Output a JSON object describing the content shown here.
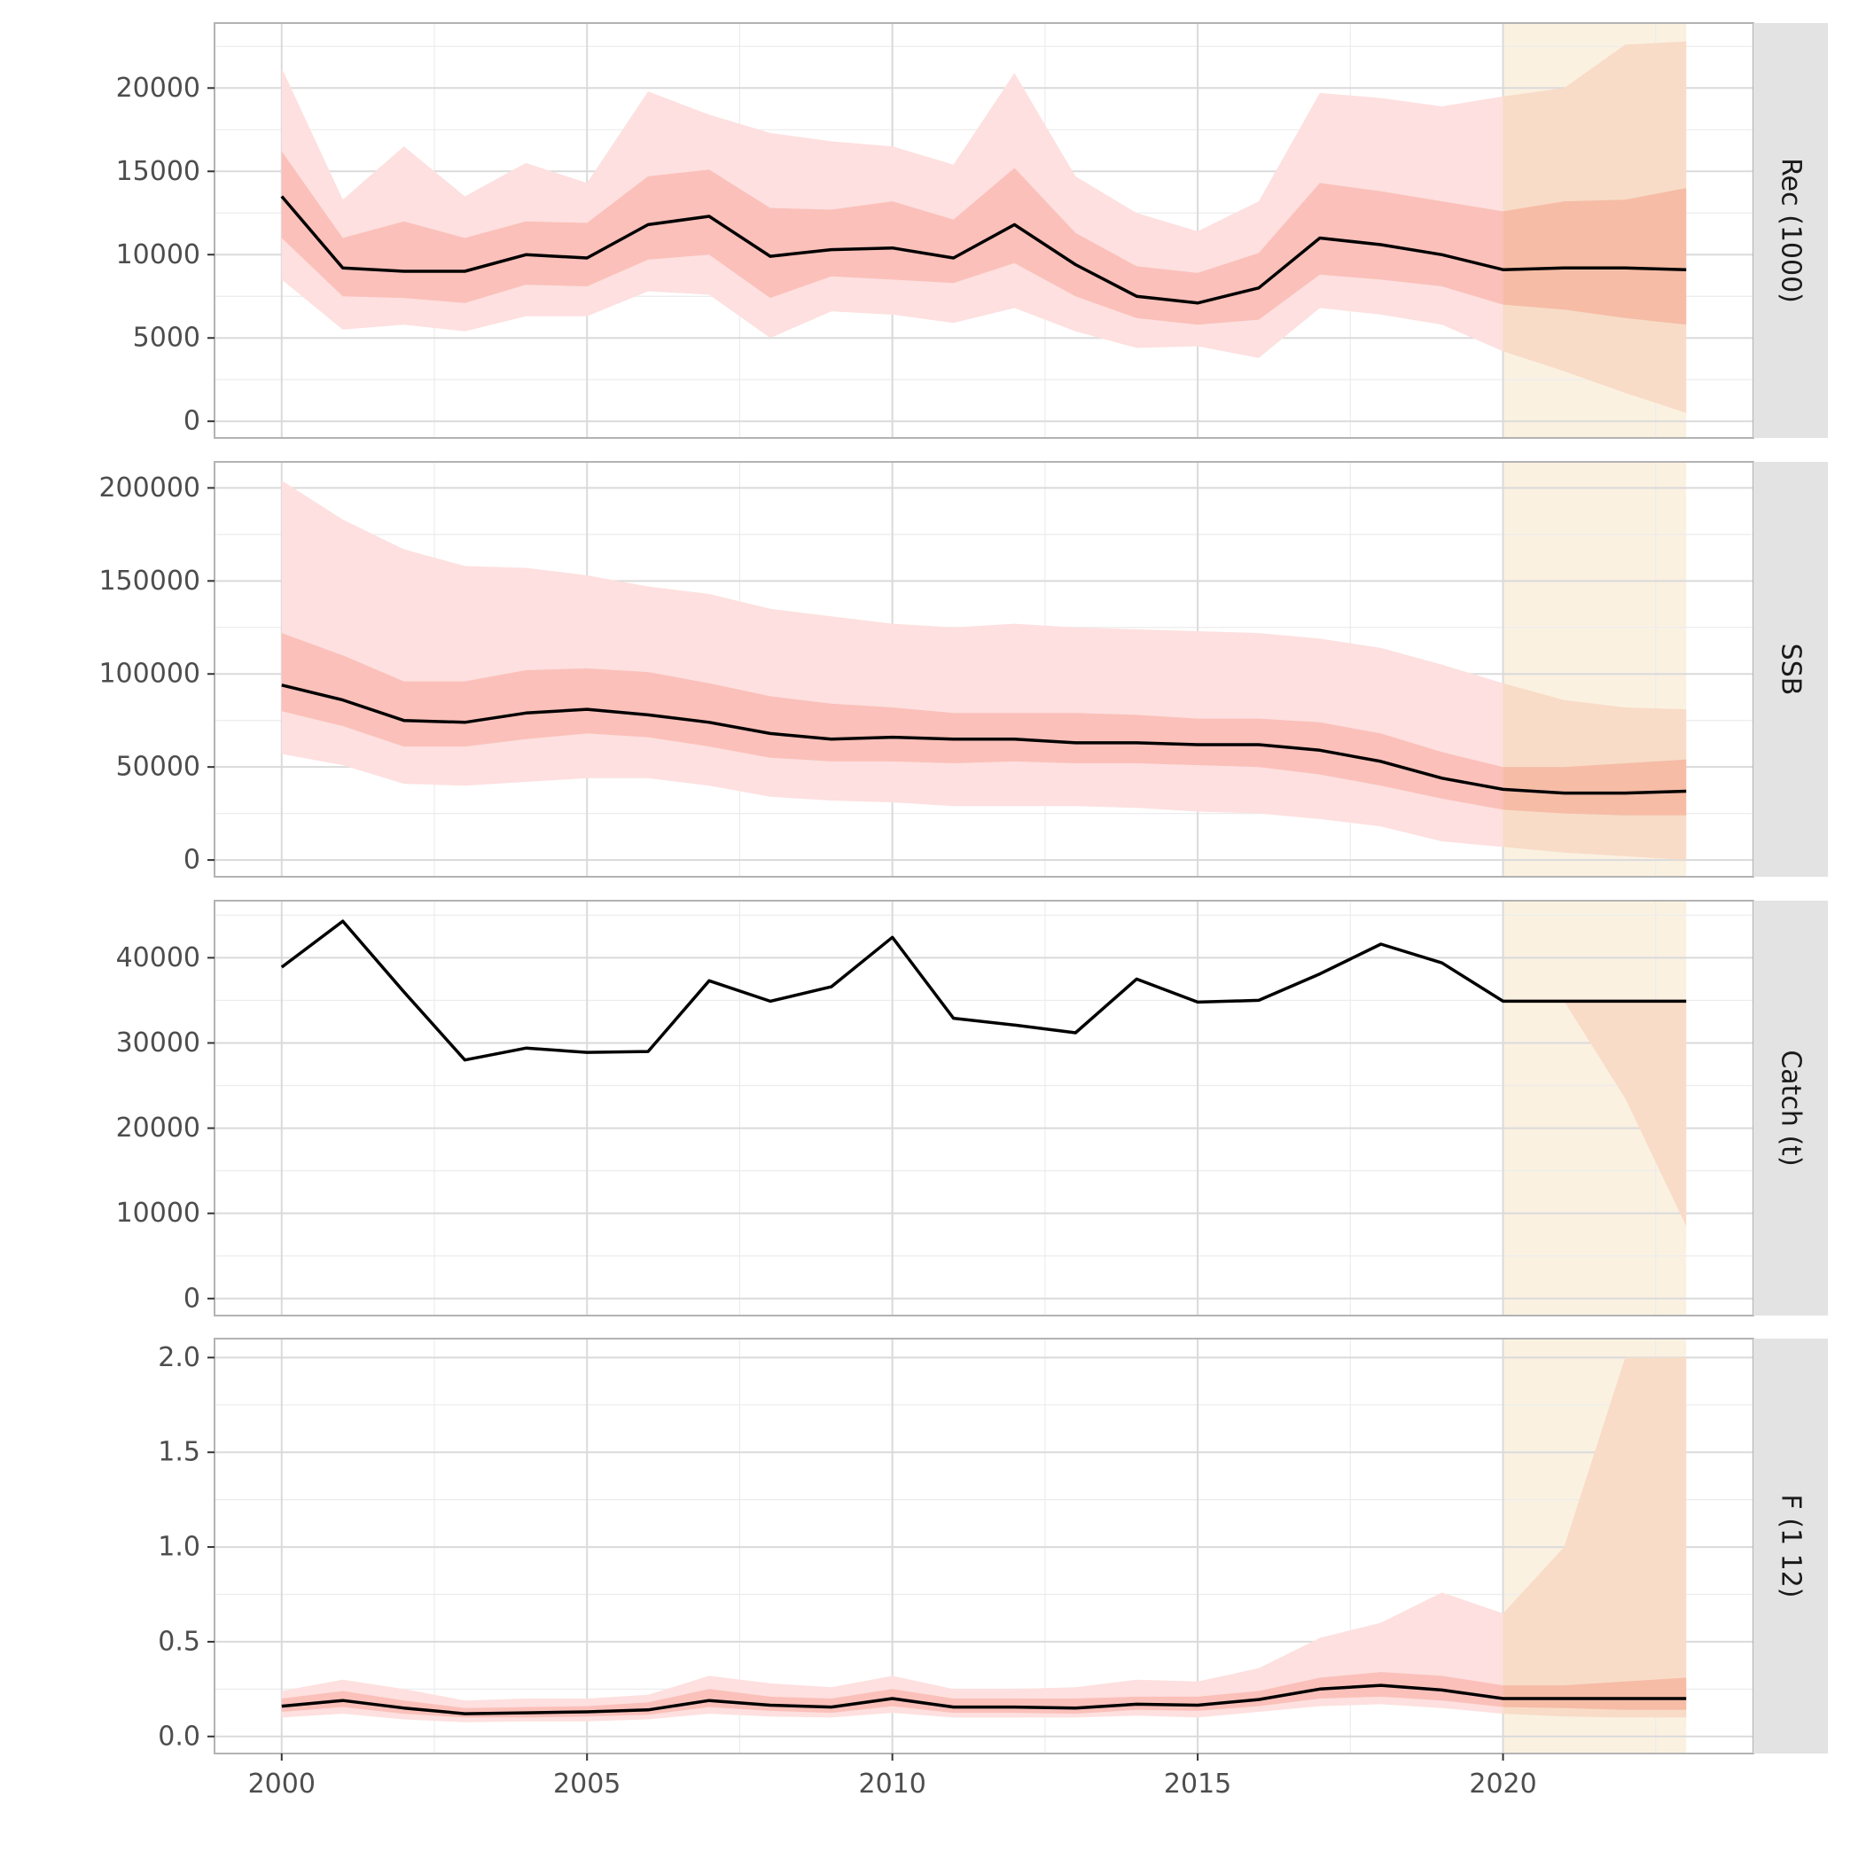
{
  "chart_data": {
    "type": "area",
    "x_label": "",
    "xlim": [
      1998.9,
      2024.1
    ],
    "x_ticks": [
      2000,
      2005,
      2010,
      2015,
      2020
    ],
    "x_minor_ticks": [
      2002.5,
      2007.5,
      2012.5,
      2017.5,
      2022.5
    ],
    "projection_period": [
      2020,
      2023
    ],
    "grid": true,
    "colors": {
      "outer_band": "#fde0df",
      "inner_band": "#fbc0ba",
      "projection_bg": "#fbf1e1",
      "projection_outer": "#f8dcc8",
      "projection_inner": "#f6bca6",
      "median_line": "#000000",
      "strip_bg": "#e3e3e3",
      "panel_border": "#b3b3b3",
      "major_grid": "#dadada",
      "minor_grid": "#ececec"
    },
    "years": [
      2000,
      2001,
      2002,
      2003,
      2004,
      2005,
      2006,
      2007,
      2008,
      2009,
      2010,
      2011,
      2012,
      2013,
      2014,
      2015,
      2016,
      2017,
      2018,
      2019,
      2020,
      2021,
      2022,
      2023
    ],
    "panels": [
      {
        "label": "Rec (1000)",
        "ylim": [
          -1000,
          23900
        ],
        "y_ticks": [
          0,
          5000,
          10000,
          15000,
          20000
        ],
        "y_tick_labels": [
          "0",
          "5000",
          "10000",
          "15000",
          "20000"
        ],
        "y_minor_ticks": [
          2500,
          7500,
          12500,
          17500,
          22500
        ],
        "median": [
          13500,
          9200,
          9000,
          9000,
          10000,
          9800,
          11800,
          12300,
          9900,
          10300,
          10400,
          9800,
          11800,
          9400,
          7500,
          7100,
          8000,
          11000,
          10600,
          10000,
          9100,
          9200,
          9200,
          9100
        ],
        "inner_low": [
          11000,
          7500,
          7400,
          7100,
          8200,
          8100,
          9700,
          10000,
          7400,
          8700,
          8500,
          8300,
          9500,
          7500,
          6200,
          5800,
          6100,
          8800,
          8500,
          8100,
          7000,
          6700,
          6200,
          5800
        ],
        "inner_high": [
          16200,
          11000,
          12000,
          11000,
          12000,
          11900,
          14700,
          15100,
          12800,
          12700,
          13200,
          12100,
          15200,
          11300,
          9300,
          8900,
          10100,
          14300,
          13800,
          13200,
          12600,
          13200,
          13300,
          14000
        ],
        "outer_low": [
          8500,
          5500,
          5800,
          5400,
          6300,
          6300,
          7800,
          7600,
          5000,
          6600,
          6400,
          5900,
          6800,
          5400,
          4400,
          4500,
          3800,
          6800,
          6400,
          5800,
          4200,
          3000,
          1700,
          500
        ],
        "outer_high": [
          21200,
          13300,
          16500,
          13500,
          15500,
          14300,
          19800,
          18400,
          17300,
          16800,
          16500,
          15400,
          20900,
          14700,
          12500,
          11400,
          13200,
          19700,
          19400,
          18900,
          19500,
          20000,
          22600,
          22800
        ]
      },
      {
        "label": "SSB",
        "ylim": [
          -9000,
          214000
        ],
        "y_ticks": [
          0,
          50000,
          100000,
          150000,
          200000
        ],
        "y_tick_labels": [
          "0",
          "50000",
          "100000",
          "150000",
          "200000"
        ],
        "y_minor_ticks": [
          25000,
          75000,
          125000,
          175000
        ],
        "median": [
          94000,
          86000,
          75000,
          74000,
          79000,
          81000,
          78000,
          74000,
          68000,
          65000,
          66000,
          65000,
          65000,
          63000,
          63000,
          62000,
          62000,
          59000,
          53000,
          44000,
          38000,
          36000,
          36000,
          37000
        ],
        "inner_low": [
          80000,
          72000,
          61000,
          61000,
          65000,
          68000,
          66000,
          61000,
          55000,
          53000,
          53000,
          52000,
          53000,
          52000,
          52000,
          51000,
          50000,
          46000,
          40000,
          33000,
          27000,
          25000,
          24000,
          24000
        ],
        "inner_high": [
          122000,
          110000,
          96000,
          96000,
          102000,
          103000,
          101000,
          95000,
          88000,
          84000,
          82000,
          79000,
          79000,
          79000,
          78000,
          76000,
          76000,
          74000,
          68000,
          58000,
          50000,
          50000,
          52000,
          54000
        ],
        "outer_low": [
          57000,
          51000,
          41000,
          40000,
          42000,
          44000,
          44000,
          40000,
          34000,
          32000,
          31000,
          29000,
          29000,
          29000,
          28000,
          26000,
          25000,
          22000,
          18000,
          10000,
          7000,
          4000,
          2000,
          0
        ],
        "outer_high": [
          204000,
          183000,
          167000,
          158000,
          157000,
          153000,
          147000,
          143000,
          135000,
          131000,
          127000,
          125000,
          127000,
          125000,
          124000,
          123000,
          122000,
          119000,
          114000,
          105000,
          95000,
          86000,
          82000,
          81000
        ]
      },
      {
        "label": "Catch (t)",
        "ylim": [
          -2000,
          46700
        ],
        "y_ticks": [
          0,
          10000,
          20000,
          30000,
          40000
        ],
        "y_tick_labels": [
          "0",
          "10000",
          "20000",
          "30000",
          "40000"
        ],
        "y_minor_ticks": [
          5000,
          15000,
          25000,
          35000,
          45000
        ],
        "median": [
          38900,
          44300,
          36000,
          28000,
          29400,
          28900,
          29000,
          37300,
          34900,
          36600,
          42400,
          32900,
          32100,
          31200,
          37500,
          34800,
          35000,
          38100,
          41600,
          39400,
          34900,
          34900,
          34900,
          34900
        ],
        "band_years": [
          2020,
          2021,
          2022,
          2023
        ],
        "inner_low": [
          34900,
          34900,
          23500,
          8500
        ],
        "inner_high": [
          34900,
          34900,
          34900,
          34900
        ]
      },
      {
        "label": "F (1  12)",
        "ylim": [
          -0.09,
          2.1
        ],
        "y_ticks": [
          0.0,
          0.5,
          1.0,
          1.5,
          2.0
        ],
        "y_tick_labels": [
          "0.0",
          "0.5",
          "1.0",
          "1.5",
          "2.0"
        ],
        "y_minor_ticks": [
          0.25,
          0.75,
          1.25,
          1.75
        ],
        "median": [
          0.16,
          0.19,
          0.15,
          0.12,
          0.125,
          0.13,
          0.14,
          0.19,
          0.165,
          0.155,
          0.2,
          0.155,
          0.155,
          0.15,
          0.17,
          0.165,
          0.195,
          0.25,
          0.27,
          0.245,
          0.2,
          0.2,
          0.2,
          0.2
        ],
        "inner_low": [
          0.13,
          0.155,
          0.12,
          0.1,
          0.1,
          0.105,
          0.115,
          0.155,
          0.135,
          0.125,
          0.16,
          0.125,
          0.125,
          0.12,
          0.14,
          0.135,
          0.16,
          0.2,
          0.21,
          0.19,
          0.155,
          0.15,
          0.14,
          0.14
        ],
        "inner_high": [
          0.2,
          0.24,
          0.19,
          0.15,
          0.155,
          0.16,
          0.18,
          0.25,
          0.21,
          0.2,
          0.25,
          0.2,
          0.2,
          0.2,
          0.21,
          0.21,
          0.24,
          0.31,
          0.34,
          0.32,
          0.27,
          0.27,
          0.29,
          0.31
        ],
        "outer_low": [
          0.1,
          0.12,
          0.09,
          0.075,
          0.08,
          0.08,
          0.09,
          0.12,
          0.105,
          0.1,
          0.125,
          0.1,
          0.1,
          0.1,
          0.11,
          0.1,
          0.13,
          0.16,
          0.17,
          0.15,
          0.12,
          0.105,
          0.1,
          0.1
        ],
        "outer_high": [
          0.24,
          0.3,
          0.25,
          0.19,
          0.2,
          0.2,
          0.22,
          0.32,
          0.28,
          0.26,
          0.32,
          0.25,
          0.25,
          0.26,
          0.3,
          0.29,
          0.36,
          0.52,
          0.6,
          0.76,
          0.65,
          1.0,
          2.0,
          2.0
        ]
      }
    ]
  }
}
